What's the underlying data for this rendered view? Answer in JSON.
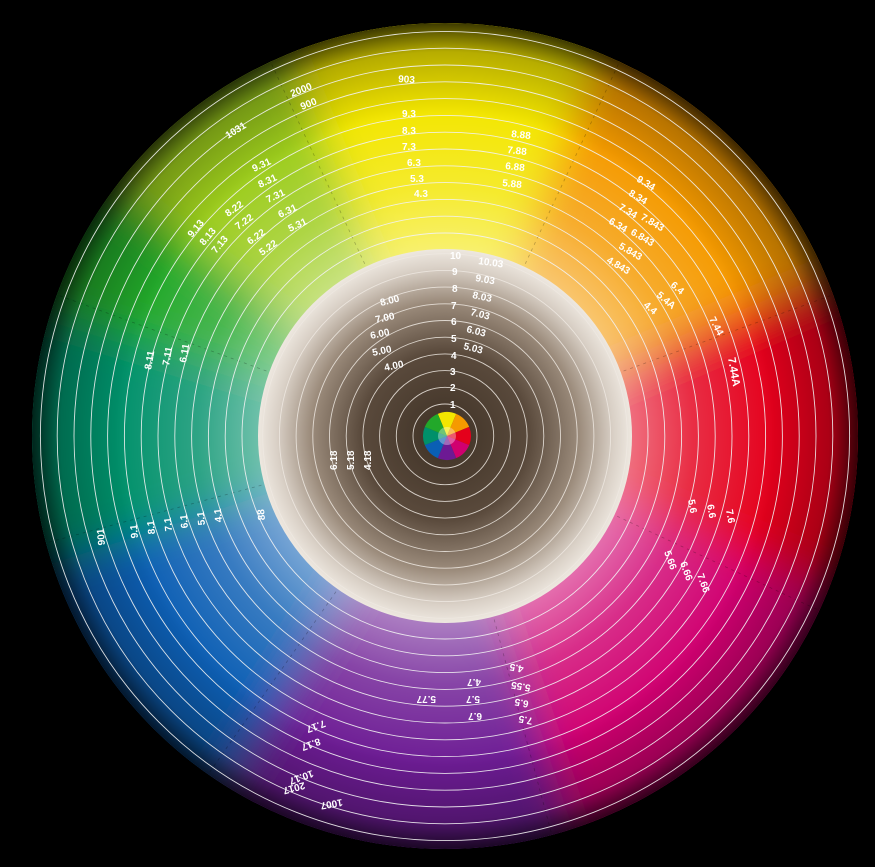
{
  "wheel": {
    "outer_labels": [
      {
        "id": "l-2000",
        "text": "2000"
      },
      {
        "id": "l-900",
        "text": "900"
      },
      {
        "id": "l-903",
        "text": "903"
      },
      {
        "id": "l-1031",
        "text": "1031"
      },
      {
        "id": "l-9-3",
        "text": "9.3"
      },
      {
        "id": "l-8-3",
        "text": "8.3"
      },
      {
        "id": "l-7-3",
        "text": "7.3"
      },
      {
        "id": "l-6-3",
        "text": "6.3"
      },
      {
        "id": "l-5-3",
        "text": "5.3"
      },
      {
        "id": "l-4-3",
        "text": "4.3"
      },
      {
        "id": "l-8-88",
        "text": "8.88"
      },
      {
        "id": "l-7-88",
        "text": "7.88"
      },
      {
        "id": "l-6-88",
        "text": "6.88"
      },
      {
        "id": "l-5-88",
        "text": "5.88"
      },
      {
        "id": "l-9-31",
        "text": "9.31"
      },
      {
        "id": "l-8-31",
        "text": "8.31"
      },
      {
        "id": "l-7-31",
        "text": "7.31"
      },
      {
        "id": "l-6-31",
        "text": "6.31"
      },
      {
        "id": "l-5-31",
        "text": "5.31"
      },
      {
        "id": "l-8-22",
        "text": "8.22"
      },
      {
        "id": "l-7-22",
        "text": "7.22"
      },
      {
        "id": "l-6-22",
        "text": "6.22"
      },
      {
        "id": "l-5-22",
        "text": "5.22"
      },
      {
        "id": "l-9-13",
        "text": "9.13"
      },
      {
        "id": "l-8-13",
        "text": "8.13"
      },
      {
        "id": "l-7-13",
        "text": "7.13"
      },
      {
        "id": "l-9-34",
        "text": "9.34"
      },
      {
        "id": "l-8-34",
        "text": "8.34"
      },
      {
        "id": "l-7-34",
        "text": "7.34"
      },
      {
        "id": "l-6-34",
        "text": "6.34"
      },
      {
        "id": "l-7-843",
        "text": "7.843"
      },
      {
        "id": "l-6-843",
        "text": "6.843"
      },
      {
        "id": "l-5-843",
        "text": "5.843"
      },
      {
        "id": "l-4-843",
        "text": "4.843"
      },
      {
        "id": "l-6-4",
        "text": "6.4"
      },
      {
        "id": "l-5-4a",
        "text": "5.4A"
      },
      {
        "id": "l-4-4",
        "text": "4.4"
      },
      {
        "id": "l-7-44",
        "text": "7.44"
      },
      {
        "id": "l-7-44a",
        "text": "7.44A"
      },
      {
        "id": "l-8-11",
        "text": "8.11"
      },
      {
        "id": "l-7-11",
        "text": "7.11"
      },
      {
        "id": "l-6-11",
        "text": "6.11"
      },
      {
        "id": "l-901",
        "text": "901"
      },
      {
        "id": "l-9-1",
        "text": "9.1"
      },
      {
        "id": "l-8-1",
        "text": "8.1"
      },
      {
        "id": "l-7-1",
        "text": "7.1"
      },
      {
        "id": "l-6-1",
        "text": "6.1"
      },
      {
        "id": "l-5-1",
        "text": "5.1"
      },
      {
        "id": "l-4-1",
        "text": "4.1"
      },
      {
        "id": "l-88",
        "text": "88"
      },
      {
        "id": "l-5-6",
        "text": "5.6"
      },
      {
        "id": "l-6-6",
        "text": "6.6"
      },
      {
        "id": "l-7-6",
        "text": "7.6"
      },
      {
        "id": "l-5-66",
        "text": "5.66"
      },
      {
        "id": "l-6-66",
        "text": "6.66"
      },
      {
        "id": "l-7-66",
        "text": "7.66"
      },
      {
        "id": "l-4-5",
        "text": "4.5"
      },
      {
        "id": "l-5-55",
        "text": "5.55"
      },
      {
        "id": "l-6-5",
        "text": "6.5"
      },
      {
        "id": "l-7-5",
        "text": "7.5"
      },
      {
        "id": "l-4-7",
        "text": "4.7"
      },
      {
        "id": "l-5-7",
        "text": "5.7"
      },
      {
        "id": "l-6-7",
        "text": "6.7"
      },
      {
        "id": "l-5-77",
        "text": "5.77"
      },
      {
        "id": "l-7-17",
        "text": "7.17"
      },
      {
        "id": "l-8-17",
        "text": "8.17"
      },
      {
        "id": "l-10-17",
        "text": "10.17"
      },
      {
        "id": "l-2017",
        "text": "2017"
      },
      {
        "id": "l-1007",
        "text": "1007"
      }
    ],
    "inner_labels": [
      {
        "id": "i-10",
        "text": "10"
      },
      {
        "id": "i-10-03",
        "text": "10.03"
      },
      {
        "id": "i-9",
        "text": "9"
      },
      {
        "id": "i-9-03",
        "text": "9.03"
      },
      {
        "id": "i-8",
        "text": "8"
      },
      {
        "id": "i-8-03",
        "text": "8.03"
      },
      {
        "id": "i-8-00",
        "text": "8.00"
      },
      {
        "id": "i-7",
        "text": "7"
      },
      {
        "id": "i-7-03",
        "text": "7.03"
      },
      {
        "id": "i-7-00",
        "text": "7.00"
      },
      {
        "id": "i-6",
        "text": "6"
      },
      {
        "id": "i-6-03",
        "text": "6.03"
      },
      {
        "id": "i-6-00",
        "text": "6.00"
      },
      {
        "id": "i-5",
        "text": "5"
      },
      {
        "id": "i-5-03",
        "text": "5.03"
      },
      {
        "id": "i-5-00",
        "text": "5.00"
      },
      {
        "id": "i-4",
        "text": "4"
      },
      {
        "id": "i-4-00",
        "text": "4.00"
      },
      {
        "id": "i-3",
        "text": "3"
      },
      {
        "id": "i-2",
        "text": "2"
      },
      {
        "id": "i-1",
        "text": "1"
      },
      {
        "id": "i-6-18",
        "text": "6.18"
      },
      {
        "id": "i-5-18",
        "text": "5.18"
      },
      {
        "id": "i-4-18",
        "text": "4.18"
      }
    ]
  },
  "colors": {
    "background": "#000000",
    "yellow": "#f3e600",
    "orange": "#f59a00",
    "red": "#e4001b",
    "magenta": "#d0006f",
    "purple": "#6d1a94",
    "blue": "#0a5fb4",
    "teal": "#00906a",
    "green": "#22a82a",
    "inner_light": "#ece5dd",
    "inner_dark": "#4a3c30"
  }
}
